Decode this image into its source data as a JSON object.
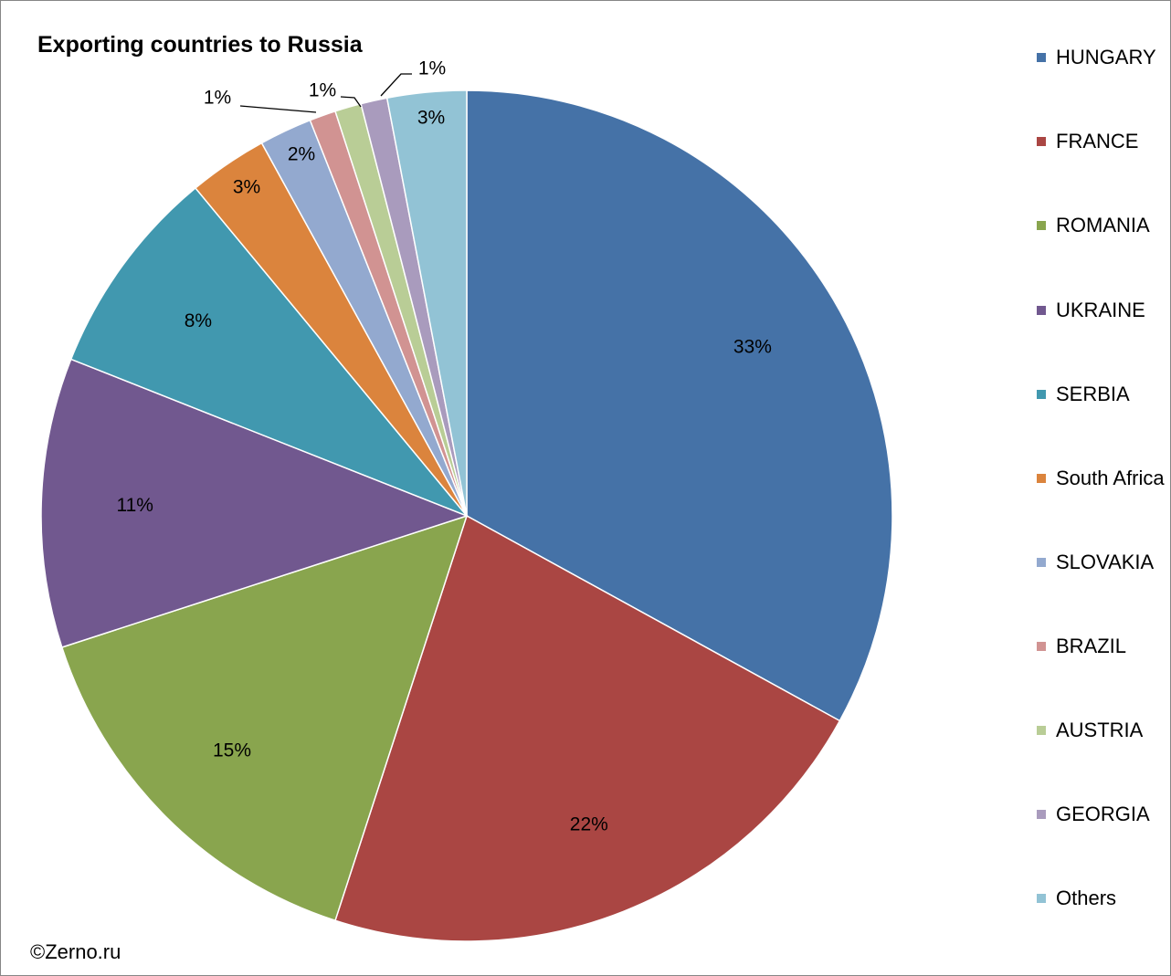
{
  "chart_data": {
    "type": "pie",
    "title": "Exporting countries to Russia",
    "categories": [
      "HUNGARY",
      "FRANCE",
      "ROMANIA",
      "UKRAINE",
      "SERBIA",
      "South Africa",
      "SLOVAKIA",
      "BRAZIL",
      "AUSTRIA",
      "GEORGIA",
      "Others"
    ],
    "values": [
      33,
      22,
      15,
      11,
      8,
      3,
      2,
      1,
      1,
      1,
      3
    ],
    "labels": [
      "33%",
      "22%",
      "15%",
      "11%",
      "8%",
      "3%",
      "2%",
      "1%",
      "1%",
      "1%",
      "3%"
    ],
    "colors": [
      "#4572A7",
      "#AA4643",
      "#89A54E",
      "#71588F",
      "#4198AF",
      "#DB843D",
      "#93A9CF",
      "#D19392",
      "#B9CD96",
      "#A99BBD",
      "#92C3D5"
    ],
    "legend_placement": "right",
    "start_angle": "12 o'clock",
    "direction": "clockwise"
  },
  "credit": "©Zerno.ru"
}
